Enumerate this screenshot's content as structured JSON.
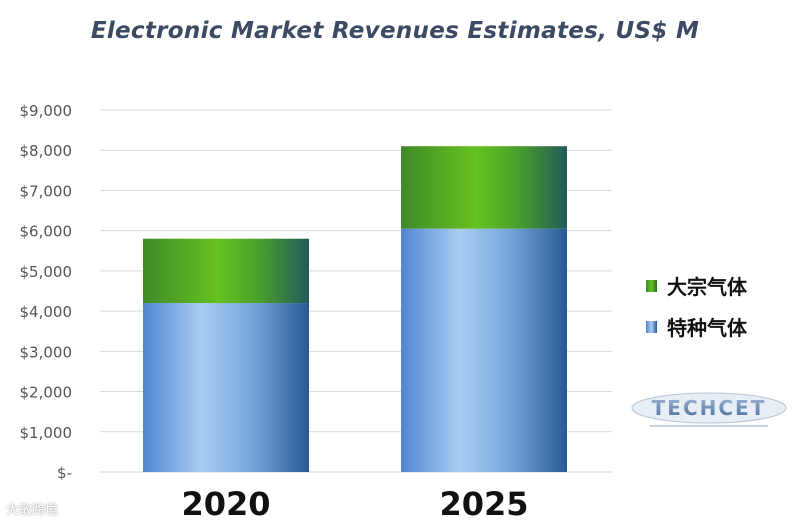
{
  "chart_data": {
    "type": "bar",
    "stacked": true,
    "title": "Electronic Market Revenues Estimates, US$ M",
    "categories": [
      "2020",
      "2025"
    ],
    "series": [
      {
        "name": "特种气体",
        "values": [
          4200,
          6050
        ],
        "color": "#5b9bd5"
      },
      {
        "name": "大宗气体",
        "values": [
          1600,
          2050
        ],
        "color": "#56a629"
      }
    ],
    "ylim": [
      0,
      9000
    ],
    "yticks": [
      0,
      1000,
      2000,
      3000,
      4000,
      5000,
      6000,
      7000,
      8000,
      9000
    ],
    "ytick_labels": [
      "$-",
      "$1,000",
      "$2,000",
      "$3,000",
      "$4,000",
      "$5,000",
      "$6,000",
      "$7,000",
      "$8,000",
      "$9,000"
    ],
    "grid": true,
    "legend_position": "right",
    "legend": [
      "大宗气体",
      "特种气体"
    ]
  },
  "logo_text": "TECHCET",
  "watermark": "大敏跨境"
}
